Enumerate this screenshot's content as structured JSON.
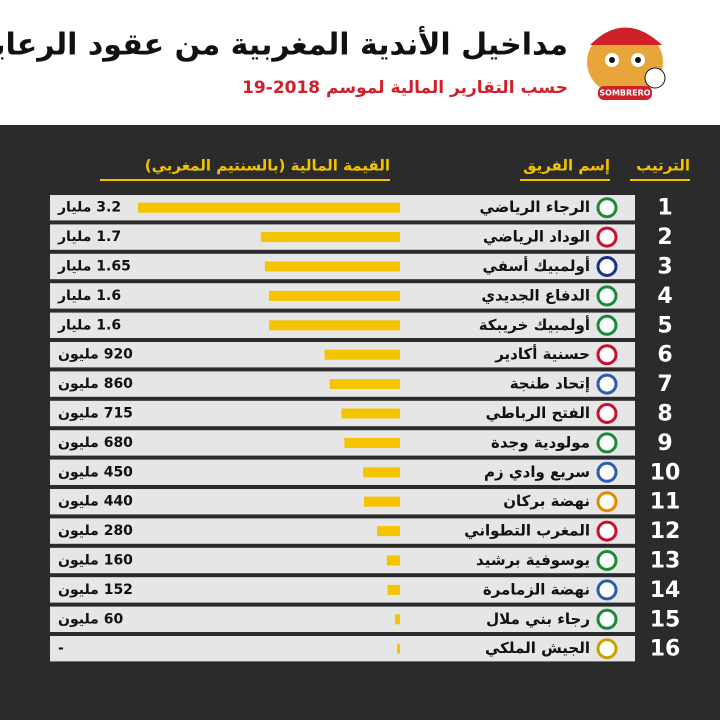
{
  "chart_data": {
    "type": "bar",
    "orientation": "horizontal",
    "title": "مداخيل الأندية المغربية من عقود الرعاية",
    "subtitle": "حسب التقارير المالية لموسم 2018-19",
    "logo_text": "SOMBRERO",
    "rank_header": "الترتيب",
    "team_header": "إسم الفريق",
    "value_header": "القيمة المالية (بالسنتيم المغربي)",
    "ranks": [
      1,
      2,
      3,
      4,
      5,
      6,
      7,
      8,
      9,
      10,
      11,
      12,
      13,
      14,
      15,
      16
    ],
    "categories": [
      "الرجاء الرياضي",
      "الوداد الرياضي",
      "أولمبيك أسفي",
      "الدفاع الجديدي",
      "أولمبيك خريبكة",
      "حسنية أكادير",
      "إتحاد طنجة",
      "الفتح الرباطي",
      "مولودية وجدة",
      "سريع وادي زم",
      "نهضة بركان",
      "المغرب التطواني",
      "يوسوفية برشيد",
      "نهضة الزمامرة",
      "رجاء بني ملال",
      "الجيش الملكي"
    ],
    "values": [
      3200,
      1700,
      1650,
      1600,
      1600,
      920,
      860,
      715,
      680,
      450,
      440,
      280,
      160,
      152,
      60,
      null
    ],
    "value_labels": [
      "3.2 مليار",
      "1.7 مليار",
      "1.65 مليار",
      "1.6 مليار",
      "1.6 مليار",
      "920 مليون",
      "860 مليون",
      "715 مليون",
      "680 مليون",
      "450 مليون",
      "440 مليون",
      "280 مليون",
      "160 مليون",
      "152 مليون",
      "60 مليون",
      "-"
    ],
    "color": "#f5c400"
  }
}
